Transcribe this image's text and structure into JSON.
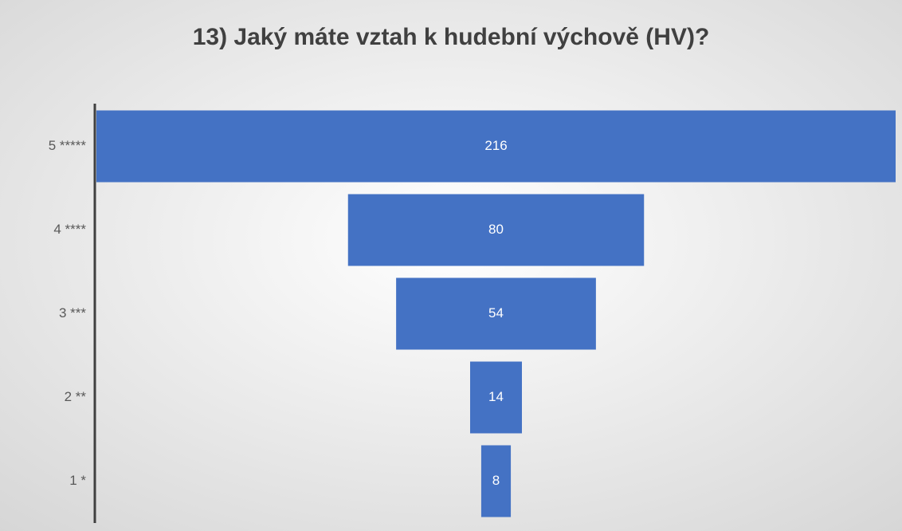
{
  "chart_data": {
    "type": "funnel",
    "title": "13) Jaký máte vztah k hudební výchově (HV)?",
    "categories": [
      "5 *****",
      "4 ****",
      "3 ***",
      "2 **",
      "1 *"
    ],
    "values": [
      216,
      80,
      54,
      14,
      8
    ],
    "color": "#4472c4"
  }
}
